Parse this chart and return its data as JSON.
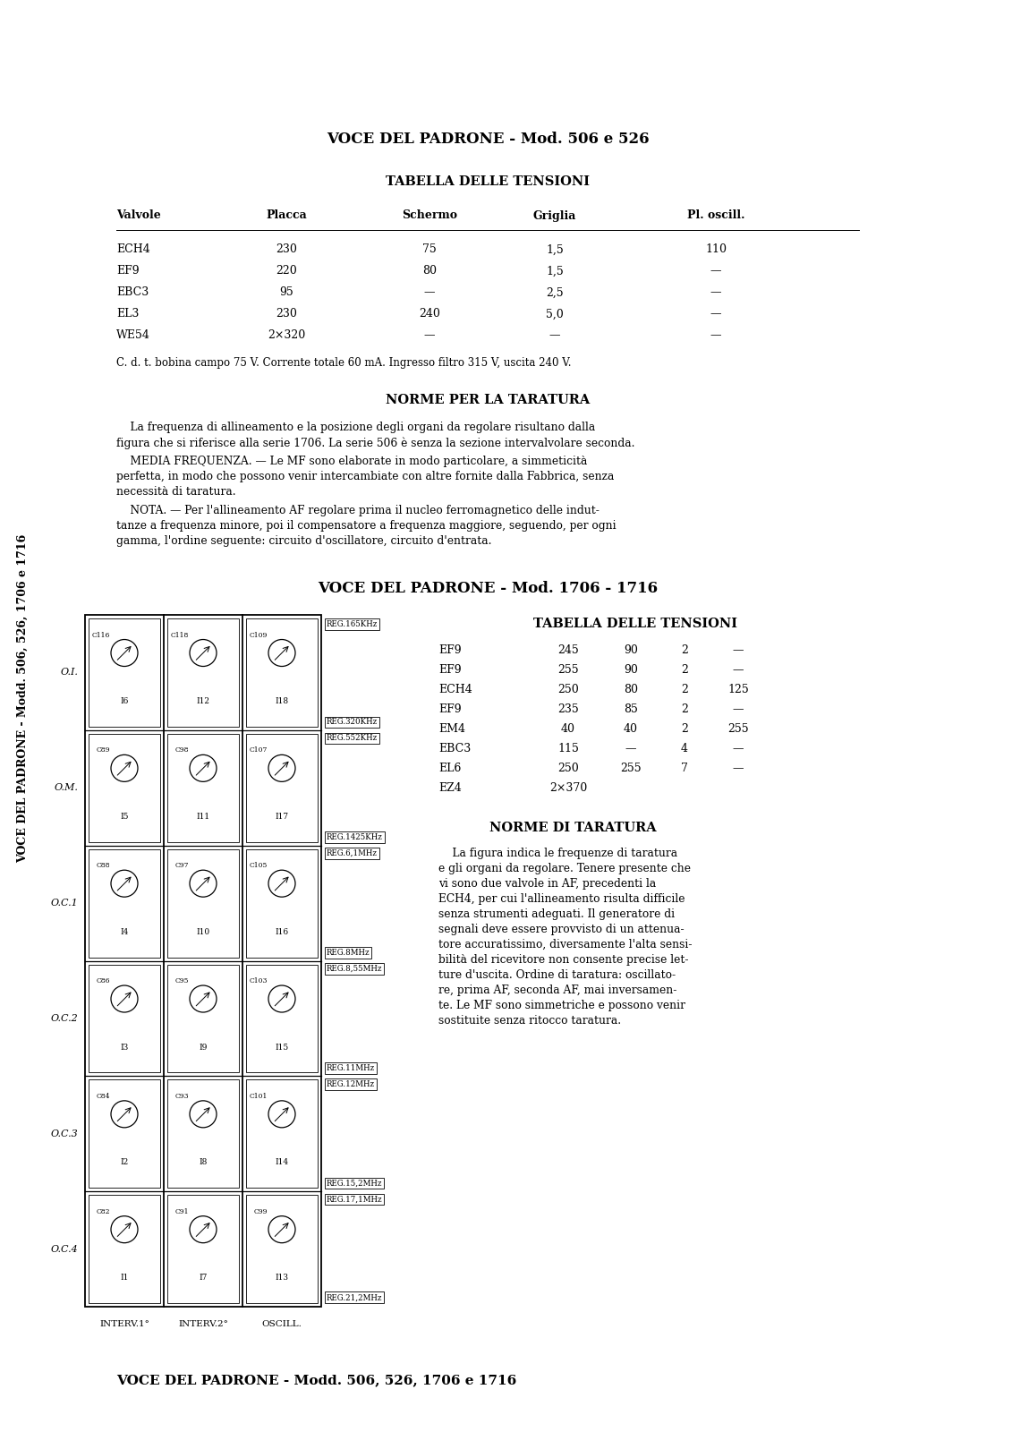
{
  "bg_color": "#ffffff",
  "sidebar_text": "VOCE DEL PADRONE - Modd. 506, 526, 1706 e 1716",
  "title1": "VOCE DEL PADRONE - Mod. 506 e 526",
  "table1_title": "TABELLA DELLE TENSIONI",
  "table1_headers": [
    "Valvole",
    "Placca",
    "Schermo",
    "Griglia",
    "Pl. oscill."
  ],
  "table1_rows": [
    [
      "ECH4",
      "230",
      "75",
      "1,5",
      "110"
    ],
    [
      "EF9",
      "220",
      "80",
      "1,5",
      "—"
    ],
    [
      "EBC3",
      "95",
      "—",
      "2,5",
      "—"
    ],
    [
      "EL3",
      "230",
      "240",
      "5,0",
      "—"
    ],
    [
      "WE54",
      "2×320",
      "—",
      "—",
      "—"
    ]
  ],
  "note1": "C. d. t. bobina campo 75 V. Corrente totale 60 mA. Ingresso filtro 315 V, uscita 240 V.",
  "section1_title": "NORME PER LA TARATURA",
  "para1": "    La frequenza di allineamento e la posizione degli organi da regolare risultano dalla figura che si riferisce alla serie 1706. La serie 506 è senza la sezione intervalvolare seconda.",
  "para2a": "    MEDIA FREQUENZA. — Le MF sono elaborate in modo particolare, a simmeticità",
  "para2b": "perfetta, in modo che possono venir intercambiate con altre fornite dalla Fabbrica, senza",
  "para2c": "necessità di taratura.",
  "para3a": "    NOTA. — Per l'allineamento AF regolare prima il nucleo ferromagnetico delle indut-",
  "para3b": "tanze a frequenza minore, poi il compensatore a frequenza maggiore, seguendo, per ogni",
  "para3c": "gamma, l'ordine seguente: circuito d'oscillatore, circuito d'entrata.",
  "title2": "VOCE DEL PADRONE - Mod. 1706 - 1716",
  "table2_title": "TABELLA DELLE TENSIONI",
  "table2_rows": [
    [
      "EF9",
      "245",
      "90",
      "2",
      "—"
    ],
    [
      "EF9",
      "255",
      "90",
      "2",
      "—"
    ],
    [
      "ECH4",
      "250",
      "80",
      "2",
      "125"
    ],
    [
      "EF9",
      "235",
      "85",
      "2",
      "—"
    ],
    [
      "EM4",
      "40",
      "40",
      "2",
      "255"
    ],
    [
      "EBC3",
      "115",
      "—",
      "4",
      "—"
    ],
    [
      "EL6",
      "250",
      "255",
      "7",
      "—"
    ],
    [
      "EZ4",
      "2×370",
      "",
      "",
      ""
    ]
  ],
  "section2_title": "NORME DI TARATURA",
  "s2_lines": [
    "    La figura indica le frequenze di taratura",
    "e gli organi da regolare. Tenere presente che",
    "vi sono due valvole in AF, precedenti la",
    "ECH4, per cui l'allineamento risulta difficile",
    "senza strumenti adeguati. Il generatore di",
    "segnali deve essere provvisto di un attenua-",
    "tore accuratissimo, diversamente l'alta sensi-",
    "bilità del ricevitore non consente precise let-",
    "ture d'uscita. Ordine di taratura: oscillato-",
    "re, prima AF, seconda AF, mai inversamen-",
    "te. Le MF sono simmetriche e possono venir",
    "sostituite senza ritocco taratura."
  ],
  "footer": "VOCE DEL PADRONE - Modd. 506, 526, 1706 e 1716",
  "diag_row_labels": [
    "O.I.",
    "O.M.",
    "O.C.1",
    "O.C.2",
    "O.C.3",
    "O.C.4"
  ],
  "freq_labels": [
    "REG.165KHz",
    "REG.320KHz",
    "REG.552KHz",
    "REG.1425KHz",
    "REG.6,1MHz",
    "REG.8MHz",
    "REG.8,55MHz",
    "REG.11MHz",
    "REG.12MHz",
    "REG.15,2MHz",
    "REG.17,1MHz",
    "REG.21,2MHz"
  ],
  "bottom_labels": [
    "INTERV.1°",
    "INTERV.2°",
    "OSCILL."
  ],
  "cap_col1": [
    "C116",
    "C89",
    "C88",
    "C86",
    "C84",
    "C82"
  ],
  "cap_col2": [
    "C118",
    "C98",
    "C97",
    "C95",
    "C93",
    "C91"
  ],
  "cap_col3": [
    "C109",
    "C107",
    "C105",
    "C103",
    "C101",
    "C99"
  ],
  "ind_col1": [
    "I6",
    "I5",
    "I4",
    "I3",
    "I2",
    "I1"
  ],
  "ind_col2": [
    "I12",
    "I11",
    "I10",
    "I9",
    "I8",
    "I7"
  ],
  "ind_col3": [
    "I18",
    "I17",
    "I16",
    "I15",
    "I14",
    "I13"
  ]
}
